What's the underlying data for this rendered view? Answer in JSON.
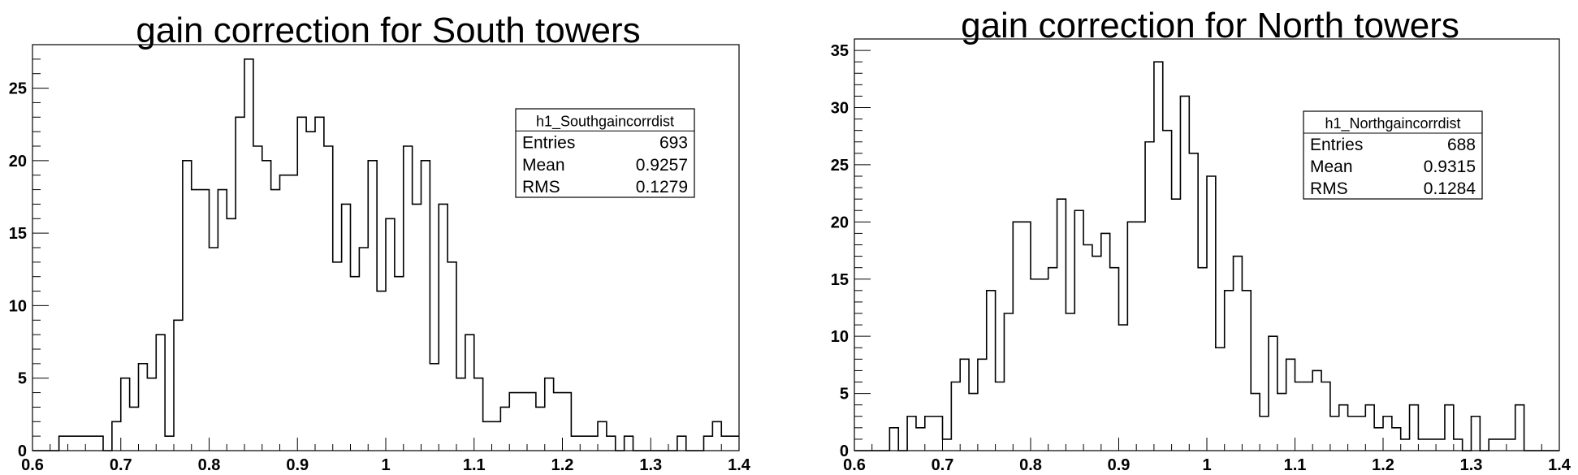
{
  "chart_data": [
    {
      "type": "bar",
      "title": "gain correction for South towers",
      "xlim": [
        0.6,
        1.4
      ],
      "ylim": [
        0,
        28
      ],
      "x_ticks": [
        "0.6",
        "0.7",
        "0.8",
        "0.9",
        "1",
        "1.1",
        "1.2",
        "1.3",
        "1.4"
      ],
      "y_ticks": [
        "0",
        "5",
        "10",
        "15",
        "20",
        "25"
      ],
      "bin_width": 0.01,
      "x_start": 0.6,
      "values": [
        0,
        0,
        0,
        1,
        1,
        1,
        1,
        1,
        0,
        2,
        5,
        3,
        6,
        5,
        8,
        1,
        9,
        20,
        18,
        18,
        14,
        18,
        16,
        23,
        27,
        21,
        20,
        18,
        19,
        19,
        23,
        22,
        23,
        21,
        13,
        17,
        12,
        14,
        20,
        11,
        16,
        12,
        21,
        17,
        20,
        6,
        17,
        13,
        5,
        8,
        5,
        2,
        2,
        3,
        4,
        4,
        4,
        3,
        5,
        4,
        4,
        1,
        1,
        1,
        2,
        1,
        0,
        1,
        0,
        0,
        0,
        0,
        0,
        1,
        0,
        0,
        1,
        2,
        1,
        1
      ],
      "stats": {
        "name": "h1_Southgaincorrdist",
        "rows": [
          {
            "label": "Entries",
            "value": "693"
          },
          {
            "label": "Mean",
            "value": "0.9257"
          },
          {
            "label": "RMS",
            "value": "0.1279"
          }
        ]
      }
    },
    {
      "type": "bar",
      "title": "gain correction for North towers",
      "xlim": [
        0.6,
        1.4
      ],
      "ylim": [
        0,
        36
      ],
      "x_ticks": [
        "0.6",
        "0.7",
        "0.8",
        "0.9",
        "1",
        "1.1",
        "1.2",
        "1.3",
        "1.4"
      ],
      "y_ticks": [
        "0",
        "5",
        "10",
        "15",
        "20",
        "25",
        "30",
        "35"
      ],
      "bin_width": 0.01,
      "x_start": 0.6,
      "values": [
        0,
        0,
        0,
        0,
        2,
        0,
        3,
        2,
        3,
        3,
        1,
        6,
        8,
        5,
        8,
        14,
        6,
        12,
        20,
        20,
        15,
        15,
        16,
        22,
        12,
        21,
        18,
        17,
        19,
        16,
        11,
        20,
        20,
        27,
        34,
        28,
        22,
        31,
        26,
        16,
        24,
        9,
        14,
        17,
        14,
        5,
        3,
        10,
        5,
        8,
        6,
        6,
        7,
        6,
        3,
        4,
        3,
        3,
        4,
        2,
        3,
        2,
        1,
        4,
        1,
        1,
        1,
        4,
        1,
        0,
        3,
        0,
        1,
        1,
        1,
        4,
        0,
        0,
        0,
        0
      ],
      "stats": {
        "name": "h1_Northgaincorrdist",
        "rows": [
          {
            "label": "Entries",
            "value": "688"
          },
          {
            "label": "Mean",
            "value": "0.9315"
          },
          {
            "label": "RMS",
            "value": "0.1284"
          }
        ]
      }
    }
  ]
}
